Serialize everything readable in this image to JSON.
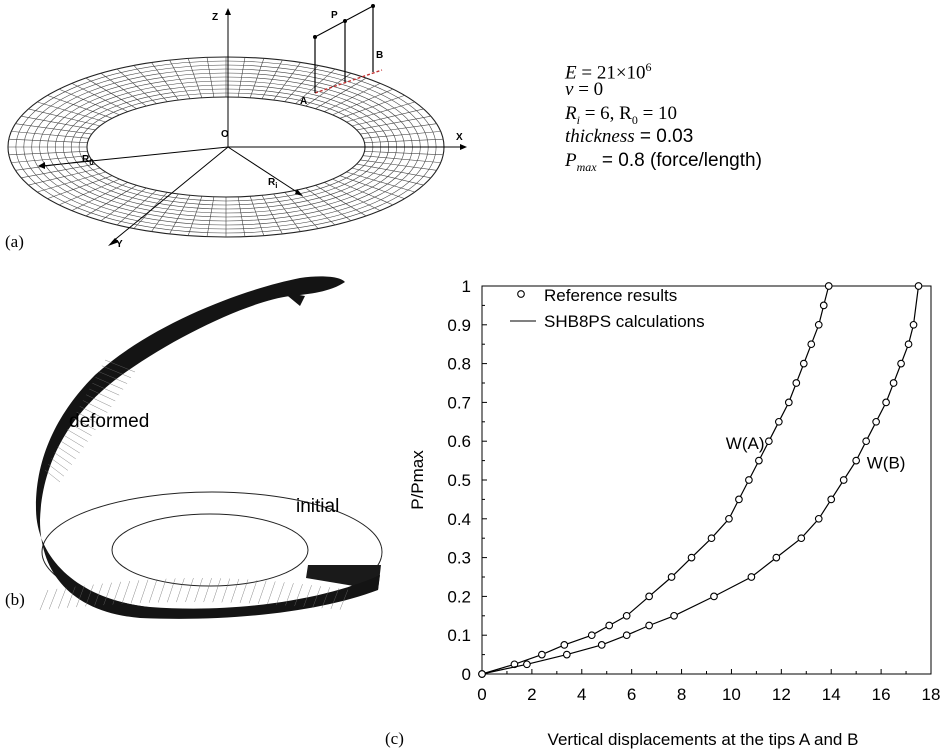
{
  "panel_labels": {
    "a": "(a)",
    "b": "(b)",
    "c": "(c)"
  },
  "sketch_labels": {
    "z": "Z",
    "p": "P",
    "b": "B",
    "a": "A",
    "o": "O",
    "x": "X",
    "y": "Y",
    "r0": "R",
    "r0_sub": "0",
    "ri": "R",
    "ri_sub": "i"
  },
  "parameters": {
    "e": {
      "sym": "E",
      "eq": " = 21×10",
      "sup": "6"
    },
    "nu": {
      "sym": "ν",
      "eq": " = 0"
    },
    "radii": {
      "sym": "R",
      "sub1": "i",
      "mid": " = 6, R",
      "sub2": "0",
      "eq": " = 10"
    },
    "thickness": {
      "sym": "thickness",
      "eq": " = 0.03"
    },
    "pmax": {
      "sym": "P",
      "sub": "max",
      "eq": " = 0.8 (force/length)"
    }
  },
  "shape_labels": {
    "deformed": "deformed",
    "initial": "initial"
  },
  "chart_data": {
    "type": "line",
    "title": "",
    "xlabel": "Vertical displacements at the tips A and B",
    "ylabel": "P/Pmax",
    "xlim": [
      0,
      18
    ],
    "ylim": [
      0,
      1
    ],
    "xticks": [
      "0",
      "2",
      "4",
      "6",
      "8",
      "10",
      "12",
      "14",
      "16",
      "18"
    ],
    "yticks": [
      "0",
      "0.1",
      "0.2",
      "0.3",
      "0.4",
      "0.5",
      "0.6",
      "0.7",
      "0.8",
      "0.9",
      "1"
    ],
    "legend": {
      "position": "top-left",
      "entries": [
        {
          "marker": "circle",
          "label": "Reference results"
        },
        {
          "marker": "line",
          "label": "SHB8PS calculations"
        }
      ]
    },
    "series": [
      {
        "name": "W(A)",
        "x": [
          0,
          1.3,
          2.4,
          3.3,
          4.4,
          5.1,
          5.8,
          6.7,
          7.6,
          8.4,
          9.2,
          9.9,
          10.3,
          10.7,
          11.1,
          11.5,
          11.9,
          12.3,
          12.6,
          12.9,
          13.2,
          13.5,
          13.7,
          13.9
        ],
        "y": [
          0,
          0.025,
          0.05,
          0.075,
          0.1,
          0.125,
          0.15,
          0.2,
          0.25,
          0.3,
          0.35,
          0.4,
          0.45,
          0.5,
          0.55,
          0.6,
          0.65,
          0.7,
          0.75,
          0.8,
          0.85,
          0.9,
          0.95,
          1.0
        ]
      },
      {
        "name": "W(B)",
        "x": [
          0,
          1.8,
          3.4,
          4.8,
          5.8,
          6.7,
          7.7,
          9.3,
          10.8,
          11.8,
          12.8,
          13.5,
          14.0,
          14.5,
          15.0,
          15.4,
          15.8,
          16.2,
          16.5,
          16.8,
          17.1,
          17.3,
          17.5
        ],
        "y": [
          0,
          0.025,
          0.05,
          0.075,
          0.1,
          0.125,
          0.15,
          0.2,
          0.25,
          0.3,
          0.35,
          0.4,
          0.45,
          0.5,
          0.55,
          0.6,
          0.65,
          0.7,
          0.75,
          0.8,
          0.85,
          0.9,
          1.0
        ]
      }
    ],
    "annotations": [
      {
        "text": "W(A)",
        "x": 10.55,
        "y": 0.58
      },
      {
        "text": "W(B)",
        "x": 16.2,
        "y": 0.53
      }
    ]
  }
}
